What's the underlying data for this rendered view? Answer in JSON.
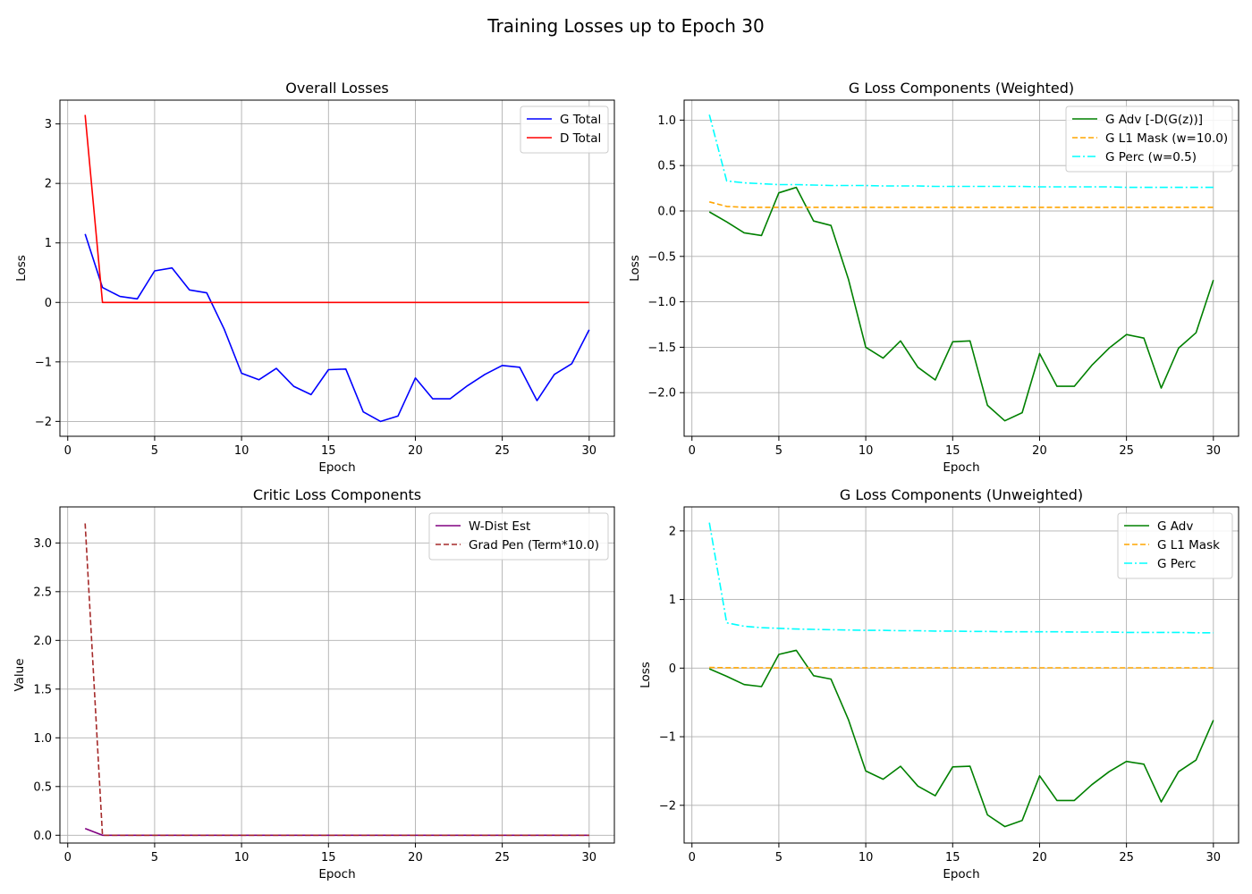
{
  "figure": {
    "suptitle": "Training Losses up to Epoch 30"
  },
  "chart_data": [
    {
      "type": "line",
      "title": "Overall Losses",
      "xlabel": "Epoch",
      "ylabel": "Loss",
      "xlim": [
        -0.45,
        31.45
      ],
      "ylim": [
        -2.25,
        3.4
      ],
      "xticks": [
        0,
        5,
        10,
        15,
        20,
        25,
        30
      ],
      "yticks": [
        -2,
        -1,
        0,
        1,
        2,
        3
      ],
      "ytick_labels": [
        "−2",
        "−1",
        "0",
        "1",
        "2",
        "3"
      ],
      "grid": true,
      "legend": "top-right",
      "x": [
        1,
        2,
        3,
        4,
        5,
        6,
        7,
        8,
        9,
        10,
        11,
        12,
        13,
        14,
        15,
        16,
        17,
        18,
        19,
        20,
        21,
        22,
        23,
        24,
        25,
        26,
        27,
        28,
        29,
        30
      ],
      "series": [
        {
          "name": "G Total",
          "color": "#0000ff",
          "dash": "solid",
          "values": [
            1.15,
            0.25,
            0.1,
            0.06,
            0.53,
            0.58,
            0.21,
            0.16,
            -0.45,
            -1.19,
            -1.3,
            -1.11,
            -1.41,
            -1.55,
            -1.13,
            -1.12,
            -1.84,
            -2.0,
            -1.91,
            -1.27,
            -1.62,
            -1.62,
            -1.4,
            -1.21,
            -1.06,
            -1.09,
            -1.65,
            -1.21,
            -1.03,
            -0.46
          ]
        },
        {
          "name": "D Total",
          "color": "#ff0000",
          "dash": "solid",
          "values": [
            3.15,
            0.0,
            0.0,
            0.0,
            0.0,
            0.0,
            0.0,
            0.0,
            0.0,
            0.0,
            0.0,
            0.0,
            0.0,
            0.0,
            0.0,
            0.0,
            0.0,
            0.0,
            0.0,
            0.0,
            0.0,
            0.0,
            0.0,
            0.0,
            0.0,
            0.0,
            0.0,
            0.0,
            0.0,
            0.0
          ]
        }
      ]
    },
    {
      "type": "line",
      "title": "G Loss Components (Weighted)",
      "xlabel": "Epoch",
      "ylabel": "Loss",
      "xlim": [
        -0.45,
        31.45
      ],
      "ylim": [
        -2.48,
        1.22
      ],
      "xticks": [
        0,
        5,
        10,
        15,
        20,
        25,
        30
      ],
      "yticks": [
        -2.0,
        -1.5,
        -1.0,
        -0.5,
        0.0,
        0.5,
        1.0
      ],
      "ytick_labels": [
        "−2.0",
        "−1.5",
        "−1.0",
        "−0.5",
        "0.0",
        "0.5",
        "1.0"
      ],
      "grid": true,
      "legend": "top-right",
      "x": [
        1,
        2,
        3,
        4,
        5,
        6,
        7,
        8,
        9,
        10,
        11,
        12,
        13,
        14,
        15,
        16,
        17,
        18,
        19,
        20,
        21,
        22,
        23,
        24,
        25,
        26,
        27,
        28,
        29,
        30
      ],
      "series": [
        {
          "name": "G Adv [-D(G(z))]",
          "color": "#008000",
          "dash": "solid",
          "values": [
            -0.01,
            -0.12,
            -0.24,
            -0.27,
            0.2,
            0.26,
            -0.11,
            -0.16,
            -0.75,
            -1.5,
            -1.62,
            -1.43,
            -1.72,
            -1.86,
            -1.44,
            -1.43,
            -2.14,
            -2.31,
            -2.22,
            -1.57,
            -1.93,
            -1.93,
            -1.7,
            -1.51,
            -1.36,
            -1.4,
            -1.95,
            -1.51,
            -1.34,
            -0.76
          ]
        },
        {
          "name": "G L1 Mask (w=10.0)",
          "color": "#ffa500",
          "dash": "dashed",
          "values": [
            0.1,
            0.05,
            0.04,
            0.04,
            0.04,
            0.04,
            0.04,
            0.04,
            0.04,
            0.04,
            0.04,
            0.04,
            0.04,
            0.04,
            0.04,
            0.04,
            0.04,
            0.04,
            0.04,
            0.04,
            0.04,
            0.04,
            0.04,
            0.04,
            0.04,
            0.04,
            0.04,
            0.04,
            0.04,
            0.04
          ]
        },
        {
          "name": "G Perc (w=0.5)",
          "color": "#00ffff",
          "dash": "dashdot",
          "values": [
            1.06,
            0.33,
            0.31,
            0.3,
            0.29,
            0.29,
            0.285,
            0.28,
            0.28,
            0.28,
            0.275,
            0.275,
            0.275,
            0.27,
            0.27,
            0.27,
            0.27,
            0.27,
            0.27,
            0.265,
            0.265,
            0.265,
            0.265,
            0.265,
            0.26,
            0.26,
            0.26,
            0.26,
            0.26,
            0.26
          ]
        }
      ]
    },
    {
      "type": "line",
      "title": "Critic Loss Components",
      "xlabel": "Epoch",
      "ylabel": "Value",
      "xlim": [
        -0.45,
        31.45
      ],
      "ylim": [
        -0.08,
        3.37
      ],
      "xticks": [
        0,
        5,
        10,
        15,
        20,
        25,
        30
      ],
      "yticks": [
        0.0,
        0.5,
        1.0,
        1.5,
        2.0,
        2.5,
        3.0
      ],
      "ytick_labels": [
        "0.0",
        "0.5",
        "1.0",
        "1.5",
        "2.0",
        "2.5",
        "3.0"
      ],
      "grid": true,
      "legend": "top-right",
      "x": [
        1,
        2,
        3,
        4,
        5,
        6,
        7,
        8,
        9,
        10,
        11,
        12,
        13,
        14,
        15,
        16,
        17,
        18,
        19,
        20,
        21,
        22,
        23,
        24,
        25,
        26,
        27,
        28,
        29,
        30
      ],
      "series": [
        {
          "name": "W-Dist Est",
          "color": "#800080",
          "dash": "solid",
          "values": [
            0.07,
            0.0,
            0.0,
            0.0,
            0.0,
            0.0,
            0.0,
            0.0,
            0.0,
            0.0,
            0.0,
            0.0,
            0.0,
            0.0,
            0.0,
            0.0,
            0.0,
            0.0,
            0.0,
            0.0,
            0.0,
            0.0,
            0.0,
            0.0,
            0.0,
            0.0,
            0.0,
            0.0,
            0.0,
            0.0
          ]
        },
        {
          "name": "Grad Pen (Term*10.0)",
          "color": "#a52a2a",
          "dash": "dashed",
          "values": [
            3.2,
            0.0,
            0.0,
            0.0,
            0.0,
            0.0,
            0.0,
            0.0,
            0.0,
            0.0,
            0.0,
            0.0,
            0.0,
            0.0,
            0.0,
            0.0,
            0.0,
            0.0,
            0.0,
            0.0,
            0.0,
            0.0,
            0.0,
            0.0,
            0.0,
            0.0,
            0.0,
            0.0,
            0.0,
            0.0
          ]
        }
      ]
    },
    {
      "type": "line",
      "title": "G Loss Components (Unweighted)",
      "xlabel": "Epoch",
      "ylabel": "Loss",
      "xlim": [
        -0.45,
        31.45
      ],
      "ylim": [
        -2.55,
        2.35
      ],
      "xticks": [
        0,
        5,
        10,
        15,
        20,
        25,
        30
      ],
      "yticks": [
        -2,
        -1,
        0,
        1,
        2
      ],
      "ytick_labels": [
        "−2",
        "−1",
        "0",
        "1",
        "2"
      ],
      "grid": true,
      "legend": "top-right",
      "x": [
        1,
        2,
        3,
        4,
        5,
        6,
        7,
        8,
        9,
        10,
        11,
        12,
        13,
        14,
        15,
        16,
        17,
        18,
        19,
        20,
        21,
        22,
        23,
        24,
        25,
        26,
        27,
        28,
        29,
        30
      ],
      "series": [
        {
          "name": "G Adv",
          "color": "#008000",
          "dash": "solid",
          "values": [
            -0.01,
            -0.12,
            -0.24,
            -0.27,
            0.2,
            0.26,
            -0.11,
            -0.16,
            -0.75,
            -1.5,
            -1.62,
            -1.43,
            -1.72,
            -1.86,
            -1.44,
            -1.43,
            -2.14,
            -2.31,
            -2.22,
            -1.57,
            -1.93,
            -1.93,
            -1.7,
            -1.51,
            -1.36,
            -1.4,
            -1.95,
            -1.51,
            -1.34,
            -0.76
          ]
        },
        {
          "name": "G L1 Mask",
          "color": "#ffa500",
          "dash": "dashed",
          "values": [
            0.01,
            0.005,
            0.004,
            0.004,
            0.004,
            0.004,
            0.004,
            0.004,
            0.004,
            0.004,
            0.004,
            0.004,
            0.004,
            0.004,
            0.004,
            0.004,
            0.004,
            0.004,
            0.004,
            0.004,
            0.004,
            0.004,
            0.004,
            0.004,
            0.004,
            0.004,
            0.004,
            0.004,
            0.004,
            0.004
          ]
        },
        {
          "name": "G Perc",
          "color": "#00ffff",
          "dash": "dashdot",
          "values": [
            2.12,
            0.66,
            0.61,
            0.59,
            0.58,
            0.57,
            0.565,
            0.56,
            0.555,
            0.55,
            0.55,
            0.545,
            0.545,
            0.54,
            0.54,
            0.535,
            0.535,
            0.53,
            0.53,
            0.53,
            0.53,
            0.525,
            0.525,
            0.525,
            0.52,
            0.52,
            0.52,
            0.52,
            0.515,
            0.515
          ]
        }
      ]
    }
  ]
}
